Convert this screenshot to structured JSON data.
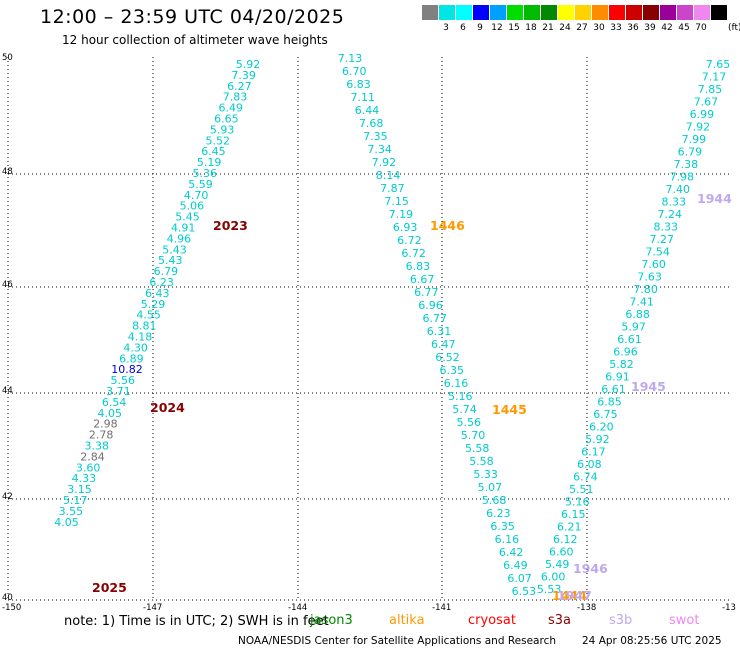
{
  "header": {
    "title": "12:00 – 23:59 UTC 04/20/2025",
    "subtitle": "12 hour collection of altimeter wave heights"
  },
  "legend": {
    "unit": "(ft)",
    "bins": [
      {
        "label": "",
        "color": "#808080"
      },
      {
        "label": "3",
        "color": "#00e5e5"
      },
      {
        "label": "6",
        "color": "#00ffff"
      },
      {
        "label": "9",
        "color": "#0000ff"
      },
      {
        "label": "12",
        "color": "#00a0ff"
      },
      {
        "label": "15",
        "color": "#00dd00"
      },
      {
        "label": "18",
        "color": "#00bb00"
      },
      {
        "label": "21",
        "color": "#008800"
      },
      {
        "label": "24",
        "color": "#ffff00"
      },
      {
        "label": "27",
        "color": "#ffd200"
      },
      {
        "label": "30",
        "color": "#ff8c00"
      },
      {
        "label": "33",
        "color": "#ff0000"
      },
      {
        "label": "36",
        "color": "#cc0000"
      },
      {
        "label": "39",
        "color": "#880000"
      },
      {
        "label": "42",
        "color": "#990099"
      },
      {
        "label": "45",
        "color": "#cc44cc"
      },
      {
        "label": "70",
        "color": "#ee88ee"
      },
      {
        "label": "",
        "color": "#000000"
      }
    ]
  },
  "axes": {
    "lat_labels": [
      "50",
      "48",
      "46",
      "44",
      "42",
      "40"
    ],
    "lon_labels": [
      "-150",
      "-147",
      "-144",
      "-141",
      "-138",
      "-13"
    ]
  },
  "tracks": [
    {
      "name": "track-2023-2025",
      "values": [
        {
          "t": "5.92",
          "c": "#00cccc"
        },
        {
          "t": "7.39",
          "c": "#00cccc"
        },
        {
          "t": "6.27",
          "c": "#00cccc"
        },
        {
          "t": "7.83",
          "c": "#00cccc"
        },
        {
          "t": "6.49",
          "c": "#00cccc"
        },
        {
          "t": "6.65",
          "c": "#00cccc"
        },
        {
          "t": "5.93",
          "c": "#00cccc"
        },
        {
          "t": "5.52",
          "c": "#00cccc"
        },
        {
          "t": "6.45",
          "c": "#00cccc"
        },
        {
          "t": "5.19",
          "c": "#00cccc"
        },
        {
          "t": "5.36",
          "c": "#00cccc"
        },
        {
          "t": "5.59",
          "c": "#00cccc"
        },
        {
          "t": "4.70",
          "c": "#00cccc"
        },
        {
          "t": "5.06",
          "c": "#00cccc"
        },
        {
          "t": "5.45",
          "c": "#00cccc"
        },
        {
          "t": "4.91",
          "c": "#00cccc"
        },
        {
          "t": "4.96",
          "c": "#00cccc"
        },
        {
          "t": "5.43",
          "c": "#00cccc"
        },
        {
          "t": "5.43",
          "c": "#00cccc"
        },
        {
          "t": "6.79",
          "c": "#00cccc"
        },
        {
          "t": "6.23",
          "c": "#00cccc"
        },
        {
          "t": "6.43",
          "c": "#00cccc"
        },
        {
          "t": "5.29",
          "c": "#00cccc"
        },
        {
          "t": "4.55",
          "c": "#00cccc"
        },
        {
          "t": "8.81",
          "c": "#00cccc"
        },
        {
          "t": "4.18",
          "c": "#00cccc"
        },
        {
          "t": "4.30",
          "c": "#00cccc"
        },
        {
          "t": "6.89",
          "c": "#00cccc"
        },
        {
          "t": "10.82",
          "c": "#0000dd"
        },
        {
          "t": "5.56",
          "c": "#00cccc"
        },
        {
          "t": "3.71",
          "c": "#00cccc"
        },
        {
          "t": "6.54",
          "c": "#00cccc"
        },
        {
          "t": "4.05",
          "c": "#00cccc"
        },
        {
          "t": "2.98",
          "c": "#707070"
        },
        {
          "t": "2.78",
          "c": "#707070"
        },
        {
          "t": "3.38",
          "c": "#00cccc"
        },
        {
          "t": "2.84",
          "c": "#707070"
        },
        {
          "t": "3.60",
          "c": "#00cccc"
        },
        {
          "t": "4.33",
          "c": "#00cccc"
        },
        {
          "t": "3.15",
          "c": "#00cccc"
        },
        {
          "t": "5.17",
          "c": "#00cccc"
        },
        {
          "t": "3.55",
          "c": "#00cccc"
        },
        {
          "t": "4.05",
          "c": "#00cccc"
        }
      ]
    },
    {
      "name": "track-1446-1445",
      "values": [
        {
          "t": "7.13"
        },
        {
          "t": "6.70"
        },
        {
          "t": "6.83"
        },
        {
          "t": "7.11"
        },
        {
          "t": "6.44"
        },
        {
          "t": "7.68"
        },
        {
          "t": "7.35"
        },
        {
          "t": "7.34"
        },
        {
          "t": "7.92"
        },
        {
          "t": "8.14"
        },
        {
          "t": "7.87"
        },
        {
          "t": "7.15"
        },
        {
          "t": "7.19"
        },
        {
          "t": "6.93"
        },
        {
          "t": "6.72"
        },
        {
          "t": "6.72"
        },
        {
          "t": "6.83"
        },
        {
          "t": "6.67"
        },
        {
          "t": "6.77"
        },
        {
          "t": "6.96"
        },
        {
          "t": "6.77"
        },
        {
          "t": "6.31"
        },
        {
          "t": "6.47"
        },
        {
          "t": "6.52"
        },
        {
          "t": "6.35"
        },
        {
          "t": "6.16"
        },
        {
          "t": "5.16"
        },
        {
          "t": "5.74"
        },
        {
          "t": "5.56"
        },
        {
          "t": "5.70"
        },
        {
          "t": "5.58"
        },
        {
          "t": "5.58"
        },
        {
          "t": "5.33"
        },
        {
          "t": "5.07"
        },
        {
          "t": "5.68"
        },
        {
          "t": "6.23"
        },
        {
          "t": "6.35"
        },
        {
          "t": "6.16"
        },
        {
          "t": "6.42"
        },
        {
          "t": "6.49"
        },
        {
          "t": "6.07"
        },
        {
          "t": "6.53"
        }
      ]
    },
    {
      "name": "track-1944-1946",
      "values": [
        {
          "t": "7.65"
        },
        {
          "t": "7.17"
        },
        {
          "t": "7.85"
        },
        {
          "t": "7.67"
        },
        {
          "t": "6.99"
        },
        {
          "t": "7.92"
        },
        {
          "t": "7.99"
        },
        {
          "t": "6.79"
        },
        {
          "t": "7.38"
        },
        {
          "t": "7.98"
        },
        {
          "t": "7.40"
        },
        {
          "t": "8.33"
        },
        {
          "t": "7.24"
        },
        {
          "t": "8.33"
        },
        {
          "t": "7.27"
        },
        {
          "t": "7.54"
        },
        {
          "t": "7.60"
        },
        {
          "t": "7.63"
        },
        {
          "t": "7.80"
        },
        {
          "t": "7.41"
        },
        {
          "t": "6.88"
        },
        {
          "t": "5.97"
        },
        {
          "t": "6.61"
        },
        {
          "t": "6.96"
        },
        {
          "t": "5.82"
        },
        {
          "t": "6.91"
        },
        {
          "t": "6.61"
        },
        {
          "t": "6.85"
        },
        {
          "t": "6.75"
        },
        {
          "t": "6.20"
        },
        {
          "t": "5.92"
        },
        {
          "t": "6.17"
        },
        {
          "t": "6.08"
        },
        {
          "t": "6.74"
        },
        {
          "t": "5.51"
        },
        {
          "t": "5.16"
        },
        {
          "t": "6.15"
        },
        {
          "t": "6.21"
        },
        {
          "t": "6.12"
        },
        {
          "t": "6.60"
        },
        {
          "t": "5.49"
        },
        {
          "t": "6.00"
        },
        {
          "t": "5.53"
        }
      ]
    }
  ],
  "time_labels": [
    {
      "t": "2023",
      "c": "#880000"
    },
    {
      "t": "2024",
      "c": "#880000"
    },
    {
      "t": "2025",
      "c": "#880000"
    },
    {
      "t": "1446",
      "c": "#ff9900"
    },
    {
      "t": "1445",
      "c": "#ff9900"
    },
    {
      "t": "1444",
      "c": "#ff9900"
    },
    {
      "t": "1944",
      "c": "#c0a8ee"
    },
    {
      "t": "1945",
      "c": "#c0a8ee"
    },
    {
      "t": "1946",
      "c": "#c0a8ee"
    },
    {
      "t": "1947",
      "c": "#c0a8ee"
    }
  ],
  "footer": {
    "note": "note:  1) Time is in UTC; 2) SWH is in feet",
    "satellites": [
      {
        "name": "jason3",
        "c": "#008800"
      },
      {
        "name": "altika",
        "c": "#ff9900"
      },
      {
        "name": "cryosat",
        "c": "#ff0000"
      },
      {
        "name": "s3a",
        "c": "#880000"
      },
      {
        "name": "s3b",
        "c": "#c0a8ee"
      },
      {
        "name": "swot",
        "c": "#ee88ee"
      }
    ],
    "credit": "NOAA/NESDIS Center for Satellite Applications and Research",
    "timestamp": "24 Apr 08:25:56 UTC 2025"
  }
}
